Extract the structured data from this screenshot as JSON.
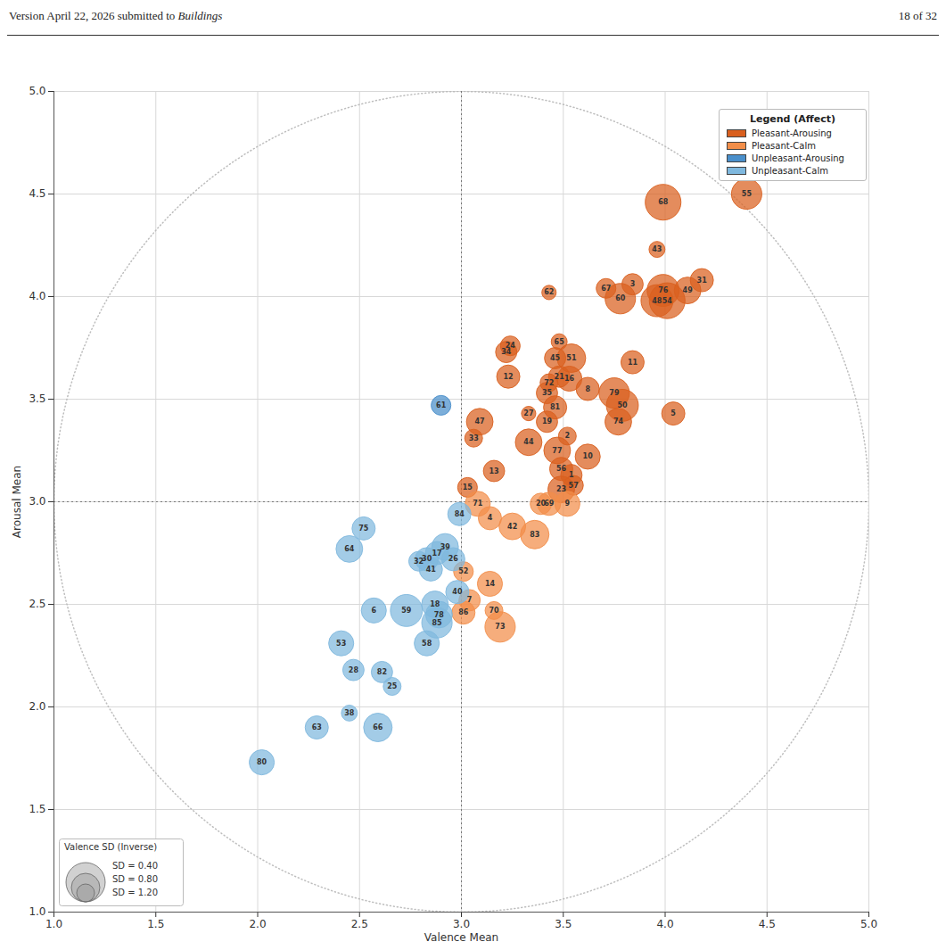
{
  "page_header": {
    "left": "Version April 22, 2026 submitted to",
    "journal": "Buildings",
    "right": "18 of 32"
  },
  "chart_data": {
    "type": "scatter",
    "x_label": "Valence Mean",
    "y_label": "Arousal Mean",
    "xlim": [
      1.0,
      5.0
    ],
    "ylim": [
      1.0,
      5.0
    ],
    "xticks": [
      {
        "value": 1.0,
        "label": "1.0"
      },
      {
        "value": 1.5,
        "label": "1.5"
      },
      {
        "value": 2.0,
        "label": "2.0"
      },
      {
        "value": 2.5,
        "label": "2.5"
      },
      {
        "value": 3.0,
        "label": "3.0"
      },
      {
        "value": 3.5,
        "label": "3.5"
      },
      {
        "value": 4.0,
        "label": "4.0"
      },
      {
        "value": 4.5,
        "label": "4.5"
      },
      {
        "value": 5.0,
        "label": "5.0"
      }
    ],
    "yticks": [
      {
        "value": 1.0,
        "label": "1.0"
      },
      {
        "value": 1.5,
        "label": "1.5"
      },
      {
        "value": 2.0,
        "label": "2.0"
      },
      {
        "value": 2.5,
        "label": "2.5"
      },
      {
        "value": 3.0,
        "label": "3.0"
      },
      {
        "value": 3.5,
        "label": "3.5"
      },
      {
        "value": 4.0,
        "label": "4.0"
      },
      {
        "value": 4.5,
        "label": "4.5"
      },
      {
        "value": 5.0,
        "label": "5.0"
      }
    ],
    "grid": true,
    "legend": "top-right",
    "legend_title": "Legend (Affect)",
    "reference_lines": {
      "x": 3.0,
      "y": 3.0
    },
    "circle": {
      "center": [
        3.0,
        3.0
      ],
      "radius": 2.0
    },
    "size_legend": {
      "title": "Valence SD (Inverse)",
      "values": [
        0.4,
        0.8,
        1.2
      ],
      "labels": [
        "SD = 0.40",
        "SD = 0.80",
        "SD = 1.20"
      ]
    },
    "series": [
      {
        "name": "Pleasant-Arousing",
        "color": "#d95f1e",
        "points": [
          {
            "label": "55",
            "x": 4.4,
            "y": 4.5,
            "sd": 0.73
          },
          {
            "label": "68",
            "x": 3.99,
            "y": 4.46,
            "sd": 0.53
          },
          {
            "label": "43",
            "x": 3.96,
            "y": 4.23,
            "sd": 1.27
          },
          {
            "label": "31",
            "x": 4.18,
            "y": 4.08,
            "sd": 1.0
          },
          {
            "label": "49",
            "x": 4.11,
            "y": 4.03,
            "sd": 0.87
          },
          {
            "label": "76",
            "x": 3.99,
            "y": 4.03,
            "sd": 0.67
          },
          {
            "label": "48",
            "x": 3.96,
            "y": 3.98,
            "sd": 0.67
          },
          {
            "label": "54",
            "x": 4.01,
            "y": 3.98,
            "sd": 0.53
          },
          {
            "label": "67",
            "x": 3.71,
            "y": 4.04,
            "sd": 1.13
          },
          {
            "label": "3",
            "x": 3.84,
            "y": 4.06,
            "sd": 1.07
          },
          {
            "label": "60",
            "x": 3.78,
            "y": 3.99,
            "sd": 0.73
          },
          {
            "label": "62",
            "x": 3.43,
            "y": 4.02,
            "sd": 1.33
          },
          {
            "label": "65",
            "x": 3.48,
            "y": 3.78,
            "sd": 1.27
          },
          {
            "label": "24",
            "x": 3.24,
            "y": 3.76,
            "sd": 1.13
          },
          {
            "label": "34",
            "x": 3.22,
            "y": 3.73,
            "sd": 1.07
          },
          {
            "label": "45",
            "x": 3.46,
            "y": 3.7,
            "sd": 1.07
          },
          {
            "label": "51",
            "x": 3.54,
            "y": 3.7,
            "sd": 0.8
          },
          {
            "label": "11",
            "x": 3.84,
            "y": 3.68,
            "sd": 1.0
          },
          {
            "label": "12",
            "x": 3.23,
            "y": 3.61,
            "sd": 1.0
          },
          {
            "label": "72",
            "x": 3.43,
            "y": 3.58,
            "sd": 1.2
          },
          {
            "label": "21",
            "x": 3.48,
            "y": 3.61,
            "sd": 1.07
          },
          {
            "label": "16",
            "x": 3.53,
            "y": 3.6,
            "sd": 0.93
          },
          {
            "label": "35",
            "x": 3.42,
            "y": 3.53,
            "sd": 1.07
          },
          {
            "label": "8",
            "x": 3.62,
            "y": 3.55,
            "sd": 1.0
          },
          {
            "label": "79",
            "x": 3.75,
            "y": 3.53,
            "sd": 0.73
          },
          {
            "label": "50",
            "x": 3.79,
            "y": 3.47,
            "sd": 0.67
          },
          {
            "label": "74",
            "x": 3.77,
            "y": 3.39,
            "sd": 0.87
          },
          {
            "label": "5",
            "x": 4.04,
            "y": 3.43,
            "sd": 1.0
          },
          {
            "label": "81",
            "x": 3.46,
            "y": 3.46,
            "sd": 1.0
          },
          {
            "label": "27",
            "x": 3.33,
            "y": 3.43,
            "sd": 1.33
          },
          {
            "label": "19",
            "x": 3.42,
            "y": 3.39,
            "sd": 1.07
          },
          {
            "label": "47",
            "x": 3.09,
            "y": 3.39,
            "sd": 0.87
          },
          {
            "label": "33",
            "x": 3.06,
            "y": 3.31,
            "sd": 1.2
          },
          {
            "label": "2",
            "x": 3.52,
            "y": 3.32,
            "sd": 1.2
          },
          {
            "label": "44",
            "x": 3.33,
            "y": 3.29,
            "sd": 0.87
          },
          {
            "label": "77",
            "x": 3.47,
            "y": 3.25,
            "sd": 0.87
          },
          {
            "label": "10",
            "x": 3.62,
            "y": 3.22,
            "sd": 0.93
          },
          {
            "label": "13",
            "x": 3.16,
            "y": 3.15,
            "sd": 1.07
          },
          {
            "label": "56",
            "x": 3.49,
            "y": 3.16,
            "sd": 1.0
          },
          {
            "label": "1",
            "x": 3.54,
            "y": 3.13,
            "sd": 1.07
          },
          {
            "label": "57",
            "x": 3.55,
            "y": 3.08,
            "sd": 1.13
          },
          {
            "label": "23",
            "x": 3.49,
            "y": 3.06,
            "sd": 0.87
          },
          {
            "label": "15",
            "x": 3.03,
            "y": 3.07,
            "sd": 1.13
          }
        ]
      },
      {
        "name": "Pleasant-Calm",
        "color": "#f28e4a",
        "points": [
          {
            "label": "71",
            "x": 3.08,
            "y": 2.99,
            "sd": 0.93
          },
          {
            "label": "69",
            "x": 3.43,
            "y": 2.99,
            "sd": 1.0
          },
          {
            "label": "20",
            "x": 3.39,
            "y": 2.99,
            "sd": 1.07
          },
          {
            "label": "9",
            "x": 3.52,
            "y": 2.99,
            "sd": 0.93
          },
          {
            "label": "4",
            "x": 3.14,
            "y": 2.92,
            "sd": 1.0
          },
          {
            "label": "42",
            "x": 3.25,
            "y": 2.88,
            "sd": 0.87
          },
          {
            "label": "83",
            "x": 3.36,
            "y": 2.84,
            "sd": 0.8
          },
          {
            "label": "52",
            "x": 3.01,
            "y": 2.66,
            "sd": 1.13
          },
          {
            "label": "14",
            "x": 3.14,
            "y": 2.6,
            "sd": 0.93
          },
          {
            "label": "7",
            "x": 3.04,
            "y": 2.52,
            "sd": 1.07
          },
          {
            "label": "86",
            "x": 3.01,
            "y": 2.46,
            "sd": 1.0
          },
          {
            "label": "70",
            "x": 3.16,
            "y": 2.47,
            "sd": 1.2
          },
          {
            "label": "73",
            "x": 3.19,
            "y": 2.39,
            "sd": 0.73
          }
        ]
      },
      {
        "name": "Unpleasant-Arousing",
        "color": "#4a8fcb",
        "points": [
          {
            "label": "61",
            "x": 2.9,
            "y": 3.47,
            "sd": 1.13
          }
        ]
      },
      {
        "name": "Unpleasant-Calm",
        "color": "#7fb8de",
        "points": [
          {
            "label": "84",
            "x": 2.99,
            "y": 2.94,
            "sd": 1.0
          },
          {
            "label": "75",
            "x": 2.52,
            "y": 2.87,
            "sd": 1.0
          },
          {
            "label": "64",
            "x": 2.45,
            "y": 2.77,
            "sd": 0.87
          },
          {
            "label": "39",
            "x": 2.92,
            "y": 2.78,
            "sd": 0.87
          },
          {
            "label": "32",
            "x": 2.79,
            "y": 2.71,
            "sd": 1.13
          },
          {
            "label": "30",
            "x": 2.83,
            "y": 2.72,
            "sd": 1.0
          },
          {
            "label": "17",
            "x": 2.88,
            "y": 2.75,
            "sd": 1.0
          },
          {
            "label": "26",
            "x": 2.96,
            "y": 2.72,
            "sd": 1.0
          },
          {
            "label": "41",
            "x": 2.85,
            "y": 2.67,
            "sd": 1.0
          },
          {
            "label": "40",
            "x": 2.98,
            "y": 2.56,
            "sd": 1.0
          },
          {
            "label": "6",
            "x": 2.57,
            "y": 2.47,
            "sd": 0.93
          },
          {
            "label": "59",
            "x": 2.73,
            "y": 2.47,
            "sd": 0.67
          },
          {
            "label": "18",
            "x": 2.87,
            "y": 2.5,
            "sd": 0.87
          },
          {
            "label": "78",
            "x": 2.89,
            "y": 2.45,
            "sd": 0.87
          },
          {
            "label": "85",
            "x": 2.88,
            "y": 2.41,
            "sd": 0.73
          },
          {
            "label": "58",
            "x": 2.83,
            "y": 2.31,
            "sd": 0.93
          },
          {
            "label": "53",
            "x": 2.41,
            "y": 2.31,
            "sd": 0.93
          },
          {
            "label": "28",
            "x": 2.47,
            "y": 2.18,
            "sd": 1.07
          },
          {
            "label": "82",
            "x": 2.61,
            "y": 2.17,
            "sd": 1.07
          },
          {
            "label": "25",
            "x": 2.66,
            "y": 2.1,
            "sd": 1.2
          },
          {
            "label": "38",
            "x": 2.45,
            "y": 1.97,
            "sd": 1.27
          },
          {
            "label": "66",
            "x": 2.59,
            "y": 1.9,
            "sd": 0.8
          },
          {
            "label": "63",
            "x": 2.29,
            "y": 1.9,
            "sd": 1.0
          },
          {
            "label": "80",
            "x": 2.02,
            "y": 1.73,
            "sd": 0.93
          }
        ]
      }
    ]
  }
}
